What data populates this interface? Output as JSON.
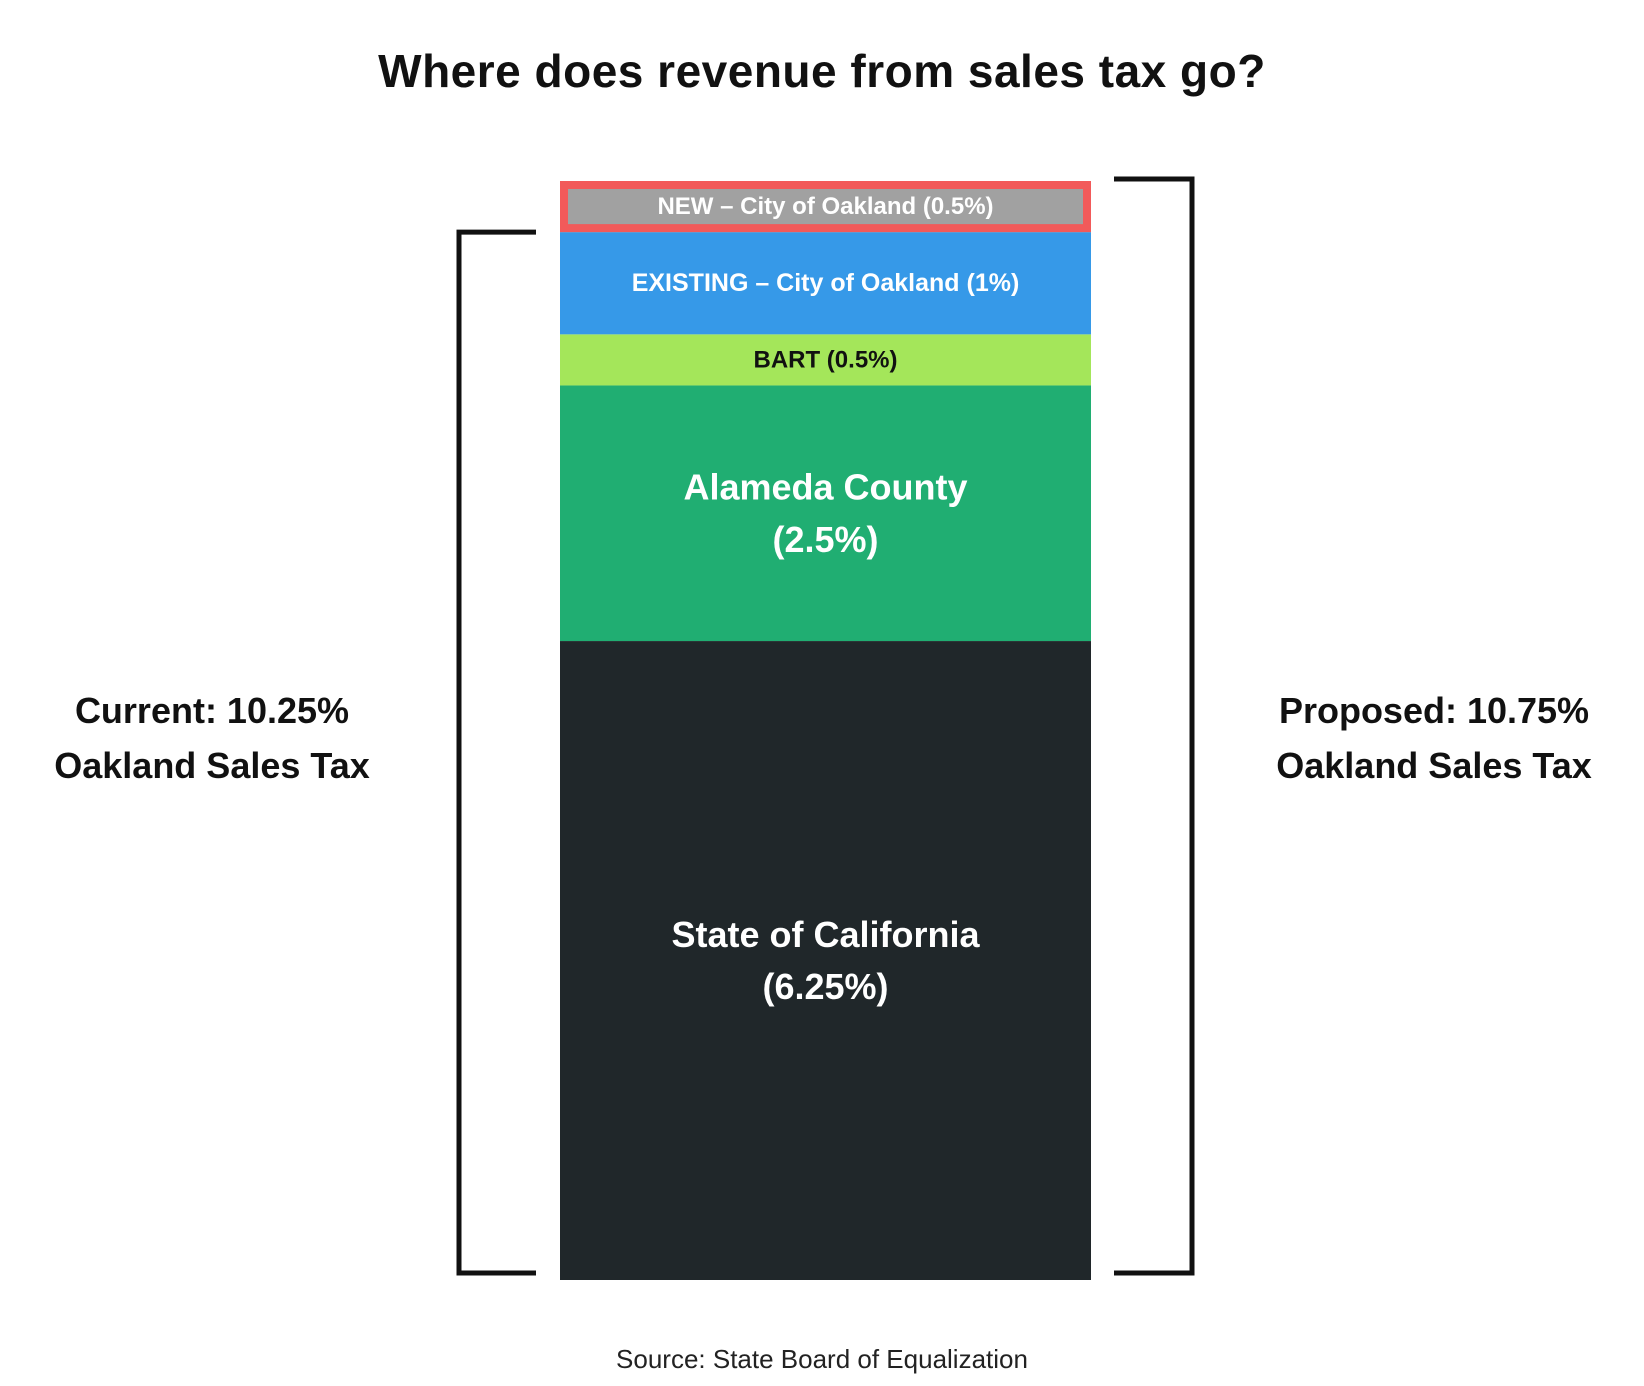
{
  "title": "Where does revenue from sales tax go?",
  "current_label": {
    "line1": "Current: 10.25%",
    "line2": "Oakland Sales Tax"
  },
  "proposed_label": {
    "line1": "Proposed: 10.75%",
    "line2": "Oakland Sales Tax"
  },
  "source": "Source: State Board of Equalization",
  "chart_data": {
    "type": "bar",
    "stacked": true,
    "title": "Where does revenue from sales tax go?",
    "xlabel": "",
    "ylabel": "",
    "ylim": [
      0,
      10.75
    ],
    "grid": false,
    "series": [
      {
        "label_lines": [
          "State of California",
          "(6.25%)"
        ],
        "value": 6.25,
        "color": "#20272a",
        "text_color": "#ffffff",
        "font_size": 36
      },
      {
        "label_lines": [
          "Alameda County",
          "(2.5%)"
        ],
        "value": 2.5,
        "color": "#20ae72",
        "text_color": "#ffffff",
        "font_size": 36
      },
      {
        "label_lines": [
          "BART (0.5%)"
        ],
        "value": 0.5,
        "color": "#a4e65a",
        "text_color": "#111111",
        "font_size": 24
      },
      {
        "label_lines": [
          "EXISTING – City of Oakland (1%)"
        ],
        "value": 1,
        "color": "#3699e8",
        "text_color": "#ffffff",
        "font_size": 25
      },
      {
        "label_lines": [
          "NEW – City of Oakland (0.5%)"
        ],
        "value": 0.5,
        "color": "#a1a1a1",
        "text_color": "#ffffff",
        "font_size": 24,
        "highlight": "#f25a5a"
      }
    ],
    "brackets": [
      {
        "name": "current",
        "total": 10.25,
        "side": "left"
      },
      {
        "name": "proposed",
        "total": 10.75,
        "side": "right"
      }
    ]
  }
}
